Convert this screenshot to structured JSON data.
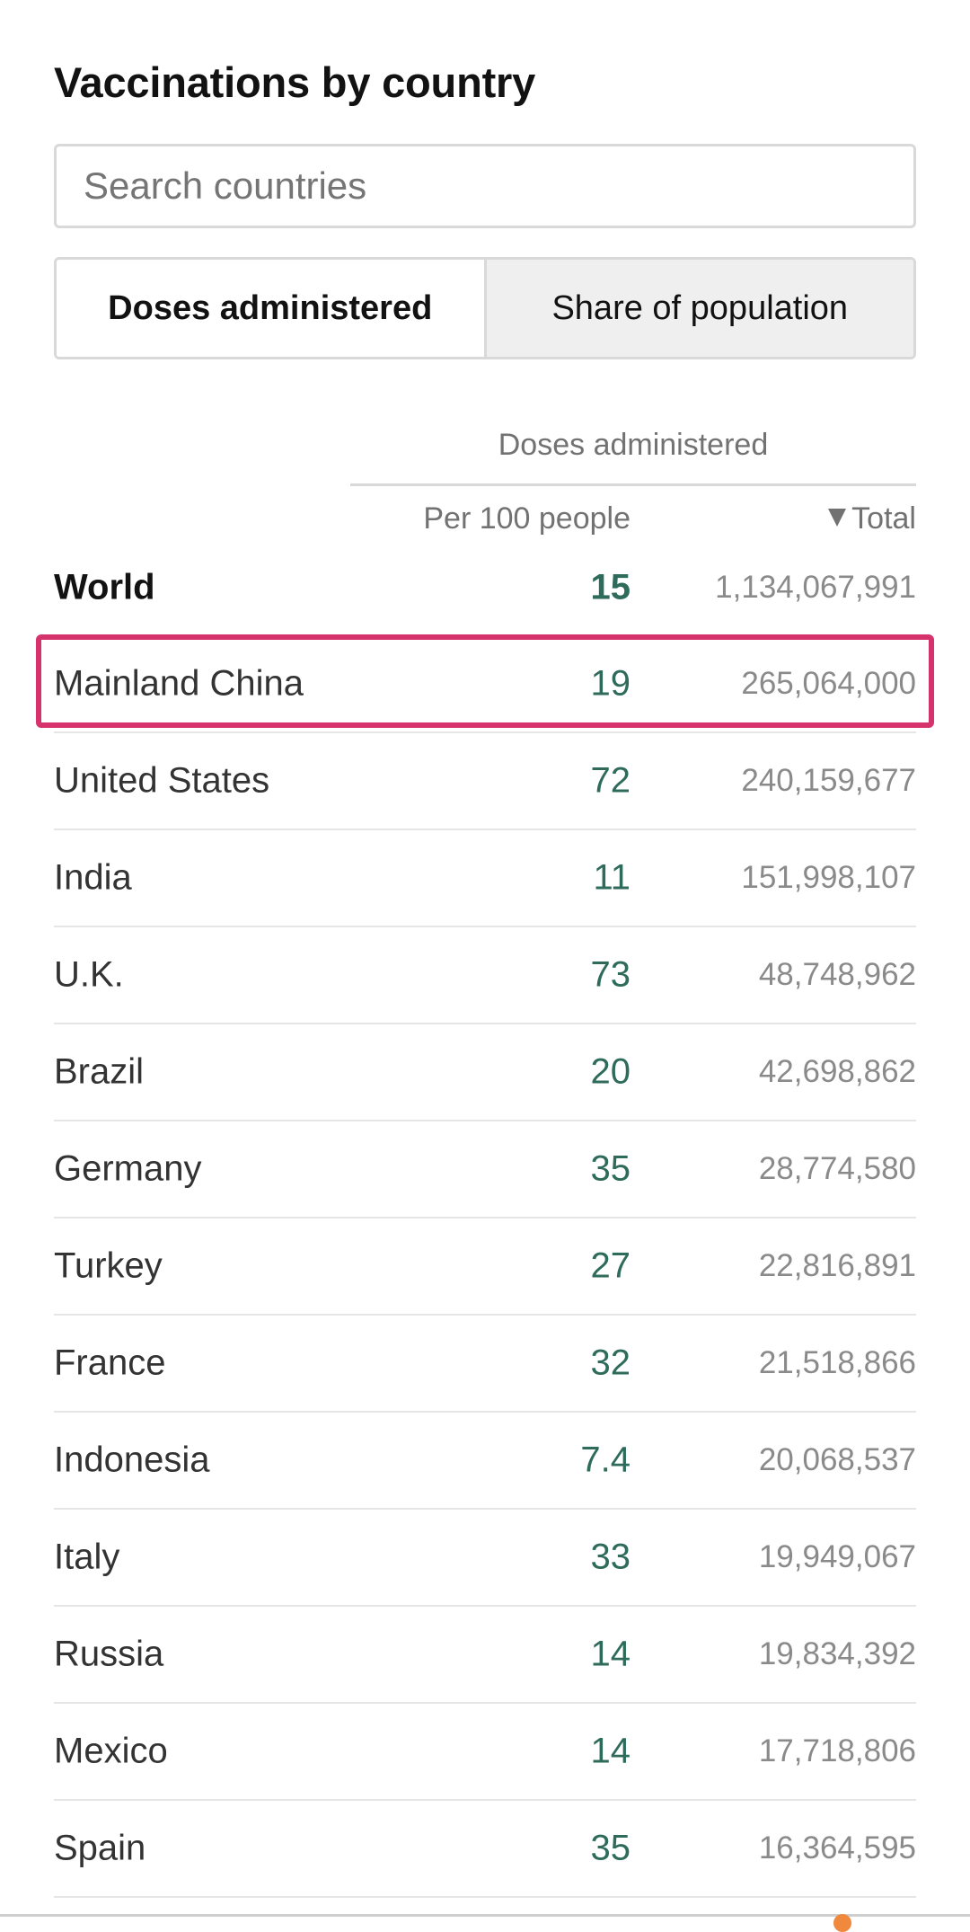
{
  "title": "Vaccinations by country",
  "search": {
    "placeholder": "Search countries",
    "value": ""
  },
  "toggle": {
    "doses_label": "Doses administered",
    "share_label": "Share of population",
    "active": "doses"
  },
  "table": {
    "group_header": "Doses administered",
    "col_per100": "Per 100 people",
    "col_total": "Total",
    "sort_direction": "descending",
    "world": {
      "name": "World",
      "per100": "15",
      "total": "1,134,067,991"
    },
    "rows": [
      {
        "name": "Mainland China",
        "per100": "19",
        "total": "265,064,000"
      },
      {
        "name": "United States",
        "per100": "72",
        "total": "240,159,677"
      },
      {
        "name": "India",
        "per100": "11",
        "total": "151,998,107"
      },
      {
        "name": "U.K.",
        "per100": "73",
        "total": "48,748,962"
      },
      {
        "name": "Brazil",
        "per100": "20",
        "total": "42,698,862"
      },
      {
        "name": "Germany",
        "per100": "35",
        "total": "28,774,580"
      },
      {
        "name": "Turkey",
        "per100": "27",
        "total": "22,816,891"
      },
      {
        "name": "France",
        "per100": "32",
        "total": "21,518,866"
      },
      {
        "name": "Indonesia",
        "per100": "7.4",
        "total": "20,068,537"
      },
      {
        "name": "Italy",
        "per100": "33",
        "total": "19,949,067"
      },
      {
        "name": "Russia",
        "per100": "14",
        "total": "19,834,392"
      },
      {
        "name": "Mexico",
        "per100": "14",
        "total": "17,718,806"
      },
      {
        "name": "Spain",
        "per100": "35",
        "total": "16,364,595"
      }
    ]
  },
  "colors": {
    "highlight": "#d6336c",
    "per100_text": "#2e6b5b",
    "total_text": "#8a8a8a",
    "indicator_dot": "#f0883e"
  },
  "icons": {
    "sort": "sort-down-triangle-icon"
  }
}
